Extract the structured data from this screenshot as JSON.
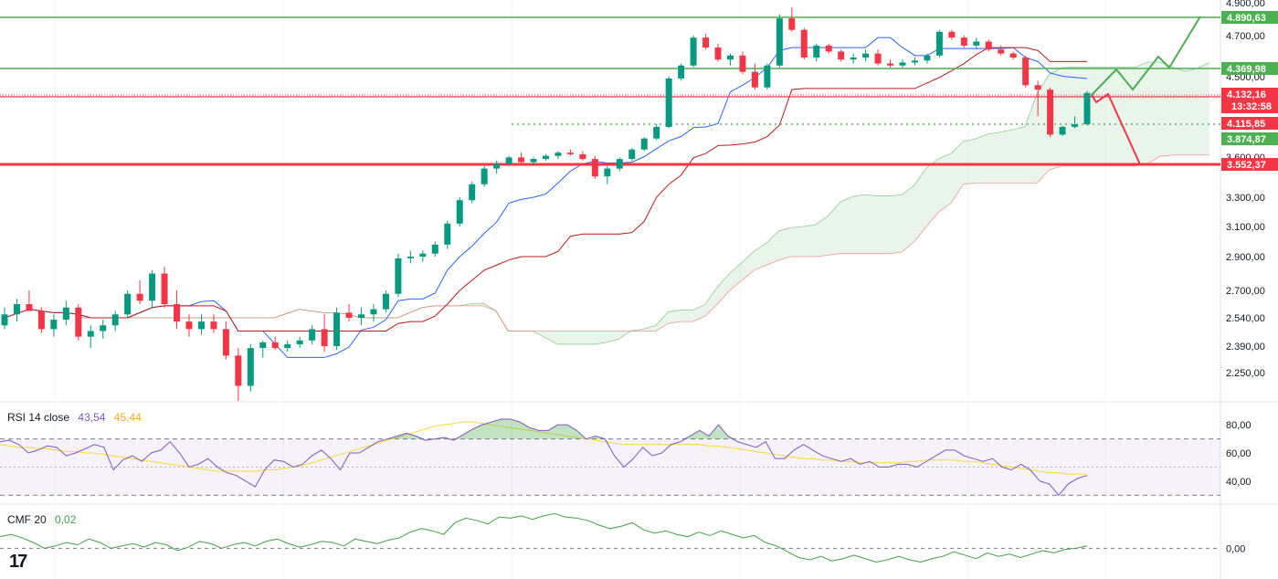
{
  "chart_data": [
    {
      "type": "candlestick",
      "price_levels": {
        "resistance_top": "4.890,63",
        "resistance_mid": "4.369,98",
        "current": "4.132,16",
        "countdown": "13:32:58",
        "kijun": "4.115,85",
        "support_dotted": "3.874,87",
        "support_bottom": "3.552,37"
      },
      "y_ticks": [
        "4.900,00",
        "4.700,00",
        "4.500,00",
        "3.600,00",
        "3.300,00",
        "3.100,00",
        "2.900,00",
        "2.700,00",
        "2.540,00",
        "2.390,00",
        "2.250,00"
      ],
      "ohlc_approx": [
        [
          2500,
          2600,
          2480,
          2560
        ],
        [
          2560,
          2650,
          2520,
          2620
        ],
        [
          2620,
          2700,
          2580,
          2580
        ],
        [
          2580,
          2600,
          2460,
          2480
        ],
        [
          2480,
          2560,
          2440,
          2530
        ],
        [
          2530,
          2640,
          2500,
          2600
        ],
        [
          2600,
          2620,
          2420,
          2440
        ],
        [
          2440,
          2500,
          2380,
          2470
        ],
        [
          2470,
          2530,
          2430,
          2500
        ],
        [
          2500,
          2580,
          2470,
          2560
        ],
        [
          2560,
          2700,
          2540,
          2680
        ],
        [
          2680,
          2760,
          2620,
          2640
        ],
        [
          2640,
          2820,
          2600,
          2800
        ],
        [
          2800,
          2840,
          2600,
          2620
        ],
        [
          2620,
          2700,
          2480,
          2520
        ],
        [
          2520,
          2560,
          2440,
          2480
        ],
        [
          2480,
          2560,
          2450,
          2520
        ],
        [
          2520,
          2560,
          2460,
          2480
        ],
        [
          2480,
          2520,
          2320,
          2340
        ],
        [
          2340,
          2380,
          2100,
          2180
        ],
        [
          2180,
          2400,
          2150,
          2380
        ],
        [
          2380,
          2420,
          2330,
          2410
        ],
        [
          2410,
          2440,
          2370,
          2380
        ],
        [
          2380,
          2420,
          2360,
          2400
        ],
        [
          2400,
          2440,
          2380,
          2420
        ],
        [
          2420,
          2500,
          2400,
          2480
        ],
        [
          2480,
          2560,
          2360,
          2390
        ],
        [
          2390,
          2600,
          2370,
          2570
        ],
        [
          2570,
          2620,
          2520,
          2540
        ],
        [
          2540,
          2600,
          2500,
          2560
        ],
        [
          2560,
          2620,
          2520,
          2590
        ],
        [
          2590,
          2700,
          2570,
          2680
        ],
        [
          2680,
          2920,
          2660,
          2890
        ],
        [
          2890,
          2940,
          2860,
          2900
        ],
        [
          2900,
          2940,
          2870,
          2920
        ],
        [
          2920,
          3000,
          2900,
          2980
        ],
        [
          2980,
          3140,
          2950,
          3120
        ],
        [
          3120,
          3300,
          3100,
          3280
        ],
        [
          3280,
          3420,
          3260,
          3400
        ],
        [
          3400,
          3540,
          3380,
          3520
        ],
        [
          3520,
          3600,
          3480,
          3560
        ],
        [
          3560,
          3660,
          3540,
          3640
        ],
        [
          3640,
          3700,
          3560,
          3580
        ],
        [
          3580,
          3640,
          3540,
          3620
        ],
        [
          3620,
          3680,
          3600,
          3660
        ],
        [
          3660,
          3720,
          3620,
          3700
        ],
        [
          3700,
          3740,
          3660,
          3680
        ],
        [
          3680,
          3720,
          3600,
          3620
        ],
        [
          3620,
          3660,
          3440,
          3460
        ],
        [
          3460,
          3540,
          3400,
          3520
        ],
        [
          3520,
          3640,
          3500,
          3620
        ],
        [
          3620,
          3760,
          3600,
          3740
        ],
        [
          3740,
          3900,
          3720,
          3880
        ],
        [
          3880,
          4100,
          3860,
          4060
        ],
        [
          4060,
          4300,
          4040,
          4280
        ],
        [
          4280,
          4420,
          4260,
          4400
        ],
        [
          4400,
          4700,
          4380,
          4680
        ],
        [
          4680,
          4720,
          4560,
          4580
        ],
        [
          4580,
          4620,
          4440,
          4460
        ],
        [
          4460,
          4520,
          4400,
          4500
        ],
        [
          4500,
          4540,
          4320,
          4340
        ],
        [
          4340,
          4420,
          4180,
          4200
        ],
        [
          4200,
          4420,
          4180,
          4400
        ],
        [
          4400,
          4920,
          4380,
          4880
        ],
        [
          4880,
          4980,
          4740,
          4760
        ],
        [
          4760,
          4780,
          4460,
          4480
        ],
        [
          4480,
          4620,
          4440,
          4600
        ],
        [
          4600,
          4620,
          4520,
          4540
        ],
        [
          4540,
          4560,
          4440,
          4460
        ],
        [
          4460,
          4520,
          4420,
          4480
        ],
        [
          4480,
          4560,
          4440,
          4520
        ],
        [
          4520,
          4560,
          4400,
          4420
        ],
        [
          4420,
          4460,
          4380,
          4400
        ],
        [
          4400,
          4460,
          4380,
          4430
        ],
        [
          4430,
          4480,
          4400,
          4450
        ],
        [
          4450,
          4520,
          4420,
          4500
        ],
        [
          4500,
          4760,
          4480,
          4740
        ],
        [
          4740,
          4760,
          4660,
          4680
        ],
        [
          4680,
          4700,
          4580,
          4600
        ],
        [
          4600,
          4680,
          4560,
          4640
        ],
        [
          4640,
          4660,
          4540,
          4560
        ],
        [
          4560,
          4600,
          4500,
          4520
        ],
        [
          4520,
          4540,
          4460,
          4480
        ],
        [
          4480,
          4500,
          4200,
          4220
        ],
        [
          4220,
          4260,
          4120,
          4180
        ],
        [
          4180,
          4200,
          3900,
          3940
        ],
        [
          3940,
          4080,
          3920,
          4060
        ],
        [
          4060,
          4120,
          4040,
          4100
        ],
        [
          4100,
          4170,
          4080,
          4150
        ]
      ],
      "projection": {
        "bull_path": "zigzag to 4.890,63",
        "bear_path": "drop to 3.552,37"
      }
    },
    {
      "type": "line",
      "name": "RSI",
      "legend": {
        "label": "RSI 14 close",
        "value": "43,54",
        "ma_value": "45,44"
      },
      "ticks": [
        "80,00",
        "60,00",
        "40,00"
      ],
      "ylim": [
        25,
        95
      ],
      "levels": {
        "upper": 70,
        "mid": 50,
        "lower": 30
      },
      "values": [
        68,
        69,
        66,
        60,
        62,
        65,
        64,
        58,
        60,
        63,
        66,
        64,
        48,
        55,
        58,
        54,
        60,
        62,
        68,
        60,
        50,
        52,
        56,
        50,
        46,
        44,
        40,
        36,
        48,
        55,
        54,
        50,
        52,
        58,
        62,
        56,
        48,
        60,
        60,
        64,
        68,
        70,
        72,
        74,
        72,
        69,
        70,
        71,
        69,
        73,
        77,
        80,
        82,
        84,
        84,
        82,
        78,
        76,
        76,
        80,
        80,
        76,
        70,
        72,
        70,
        58,
        50,
        56,
        64,
        58,
        60,
        66,
        68,
        72,
        76,
        72,
        80,
        72,
        68,
        66,
        64,
        68,
        56,
        56,
        62,
        66,
        62,
        58,
        56,
        54,
        56,
        52,
        54,
        50,
        50,
        52,
        52,
        50,
        54,
        58,
        62,
        62,
        58,
        56,
        54,
        56,
        50,
        48,
        52,
        48,
        40,
        38,
        30,
        38,
        42,
        44
      ],
      "ma_values": [
        66,
        65,
        64,
        64,
        63,
        63,
        62,
        61,
        61,
        60,
        60,
        59,
        58,
        57,
        56,
        55,
        54,
        53,
        52,
        51,
        50,
        49,
        48,
        47,
        47,
        47,
        47,
        47,
        48,
        48,
        49,
        50,
        51,
        53,
        55,
        57,
        59,
        61,
        63,
        65,
        67,
        69,
        71,
        73,
        75,
        77,
        79,
        80,
        81,
        82,
        82,
        81,
        80,
        79,
        78,
        77,
        76,
        75,
        74,
        73,
        72,
        71,
        70,
        69,
        68,
        67,
        66,
        66,
        66,
        66,
        66,
        66,
        66,
        66,
        66,
        65,
        65,
        64,
        63,
        62,
        61,
        60,
        59,
        58,
        57,
        56,
        56,
        55,
        55,
        54,
        54,
        53,
        53,
        53,
        53,
        53,
        54,
        54,
        55,
        55,
        55,
        55,
        54,
        54,
        53,
        52,
        51,
        50,
        49,
        48,
        47,
        46,
        46,
        45,
        45,
        45
      ]
    },
    {
      "type": "line",
      "name": "CMF",
      "legend": {
        "label": "CMF 20",
        "value": "0,02"
      },
      "ticks": [
        "0,00"
      ],
      "ylim": [
        -0.25,
        0.35
      ],
      "values": [
        0.1,
        0.12,
        0.09,
        0.05,
        0.0,
        0.02,
        0.05,
        0.03,
        0.08,
        0.05,
        0.0,
        0.02,
        0.04,
        0.01,
        0.05,
        0.03,
        -0.02,
        0.01,
        0.06,
        0.04,
        0.0,
        0.03,
        0.05,
        0.02,
        0.06,
        0.08,
        0.04,
        0.01,
        0.03,
        0.06,
        0.05,
        0.02,
        0.08,
        0.06,
        0.04,
        0.07,
        0.09,
        0.14,
        0.17,
        0.15,
        0.12,
        0.22,
        0.26,
        0.24,
        0.21,
        0.27,
        0.26,
        0.28,
        0.25,
        0.28,
        0.3,
        0.27,
        0.26,
        0.24,
        0.2,
        0.17,
        0.19,
        0.22,
        0.16,
        0.13,
        0.15,
        0.12,
        0.1,
        0.14,
        0.11,
        0.15,
        0.12,
        0.09,
        0.11,
        0.05,
        0.02,
        -0.03,
        -0.08,
        -0.1,
        -0.07,
        -0.11,
        -0.09,
        -0.06,
        -0.09,
        -0.12,
        -0.1,
        -0.07,
        -0.1,
        -0.12,
        -0.09,
        -0.07,
        -0.03,
        -0.06,
        -0.09,
        -0.04,
        -0.07,
        -0.05,
        -0.08,
        -0.05,
        -0.02,
        -0.04,
        -0.01,
        0.0,
        0.02
      ]
    }
  ],
  "colors": {
    "up": "#26a69a",
    "up_body": "#089981",
    "down": "#f23645",
    "tenkan": "#2962ff",
    "kijun": "#b71c1c",
    "cloud_green": "#4caf50",
    "cloud_red": "#ef5350",
    "resistance": "#4caf50",
    "support": "#f23645",
    "rsi": "#7e57c2",
    "rsi_ma": "#fdd835",
    "cmf": "#43a047"
  },
  "brand": "17"
}
